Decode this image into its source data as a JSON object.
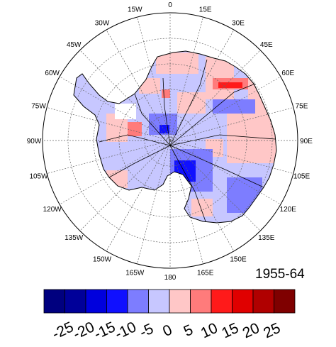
{
  "map": {
    "longitude_labels": [
      {
        "text": "0",
        "deg": 0
      },
      {
        "text": "15E",
        "deg": 15
      },
      {
        "text": "30E",
        "deg": 30
      },
      {
        "text": "45E",
        "deg": 45
      },
      {
        "text": "60E",
        "deg": 60
      },
      {
        "text": "75E",
        "deg": 75
      },
      {
        "text": "90E",
        "deg": 90
      },
      {
        "text": "105E",
        "deg": 105
      },
      {
        "text": "120E",
        "deg": 120
      },
      {
        "text": "135E",
        "deg": 135
      },
      {
        "text": "150E",
        "deg": 150
      },
      {
        "text": "165E",
        "deg": 165
      },
      {
        "text": "180",
        "deg": 180
      },
      {
        "text": "165W",
        "deg": 195
      },
      {
        "text": "150W",
        "deg": 210
      },
      {
        "text": "135W",
        "deg": 225
      },
      {
        "text": "120W",
        "deg": 240
      },
      {
        "text": "105W",
        "deg": 255
      },
      {
        "text": "90W",
        "deg": 270
      },
      {
        "text": "75W",
        "deg": 285
      },
      {
        "text": "60W",
        "deg": 300
      },
      {
        "text": "45W",
        "deg": 315
      },
      {
        "text": "30W",
        "deg": 330
      },
      {
        "text": "15W",
        "deg": 345
      }
    ],
    "period_label": "1955-64",
    "projection": "south-polar-stereographic",
    "grid": true
  },
  "colorbar": {
    "tick_labels": [
      "-25",
      "-20",
      "-15",
      "-10",
      "-5",
      "0",
      "5",
      "10",
      "15",
      "20",
      "25"
    ],
    "colors": [
      "#00007f",
      "#000099",
      "#0000dd",
      "#1010ff",
      "#7d7dff",
      "#c7c7ff",
      "#ffc7c7",
      "#ff7b7b",
      "#ff1a1a",
      "#e00000",
      "#b00000",
      "#7f0000"
    ]
  }
}
